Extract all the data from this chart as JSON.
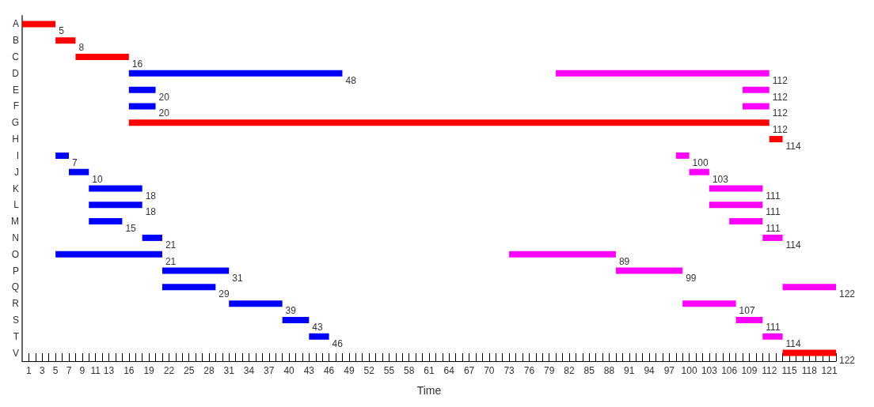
{
  "chart_data": {
    "type": "bar",
    "orientation": "horizontal",
    "xlabel": "Time",
    "categories": [
      "A",
      "B",
      "C",
      "D",
      "E",
      "F",
      "G",
      "H",
      "I",
      "J",
      "K",
      "L",
      "M",
      "N",
      "O",
      "P",
      "Q",
      "R",
      "S",
      "T",
      "V"
    ],
    "xlim": [
      0,
      122
    ],
    "xticks": [
      1,
      {
        "value": 2,
        "label": null
      },
      3,
      {
        "value": 4,
        "label": null
      },
      5,
      {
        "value": 6,
        "label": null
      },
      7,
      {
        "value": 8,
        "label": null
      },
      9,
      {
        "value": 10,
        "label": null
      },
      11,
      {
        "value": 12,
        "label": null
      },
      13,
      {
        "value": 14,
        "label": null
      },
      {
        "value": 15,
        "label": null
      },
      16,
      {
        "value": 17,
        "label": null
      },
      {
        "value": 18,
        "label": null
      },
      19,
      {
        "value": 20,
        "label": null
      },
      {
        "value": 21,
        "label": null
      },
      22,
      {
        "value": 23,
        "label": null
      },
      {
        "value": 24,
        "label": null
      },
      25,
      {
        "value": 26,
        "label": null
      },
      {
        "value": 27,
        "label": null
      },
      28,
      {
        "value": 29,
        "label": null
      },
      {
        "value": 30,
        "label": null
      },
      31,
      {
        "value": 32,
        "label": null
      },
      {
        "value": 33,
        "label": null
      },
      34,
      {
        "value": 35,
        "label": null
      },
      {
        "value": 36,
        "label": null
      },
      37,
      {
        "value": 38,
        "label": null
      },
      {
        "value": 39,
        "label": null
      },
      40,
      {
        "value": 41,
        "label": null
      },
      {
        "value": 42,
        "label": null
      },
      43,
      {
        "value": 44,
        "label": null
      },
      {
        "value": 45,
        "label": null
      },
      46,
      {
        "value": 47,
        "label": null
      },
      {
        "value": 48,
        "label": null
      },
      49,
      {
        "value": 50,
        "label": null
      },
      {
        "value": 51,
        "label": null
      },
      52,
      {
        "value": 53,
        "label": null
      },
      {
        "value": 54,
        "label": null
      },
      55,
      {
        "value": 56,
        "label": null
      },
      {
        "value": 57,
        "label": null
      },
      58,
      {
        "value": 59,
        "label": null
      },
      {
        "value": 60,
        "label": null
      },
      61,
      {
        "value": 62,
        "label": null
      },
      {
        "value": 63,
        "label": null
      },
      64,
      {
        "value": 65,
        "label": null
      },
      {
        "value": 66,
        "label": null
      },
      67,
      {
        "value": 68,
        "label": null
      },
      {
        "value": 69,
        "label": null
      },
      70,
      {
        "value": 71,
        "label": null
      },
      {
        "value": 72,
        "label": null
      },
      73,
      {
        "value": 74,
        "label": null
      },
      {
        "value": 75,
        "label": null
      },
      76,
      {
        "value": 77,
        "label": null
      },
      {
        "value": 78,
        "label": null
      },
      79,
      {
        "value": 80,
        "label": null
      },
      {
        "value": 81,
        "label": null
      },
      82,
      {
        "value": 83,
        "label": null
      },
      {
        "value": 84,
        "label": null
      },
      85,
      {
        "value": 86,
        "label": null
      },
      {
        "value": 87,
        "label": null
      },
      88,
      {
        "value": 89,
        "label": null
      },
      {
        "value": 90,
        "label": null
      },
      91,
      {
        "value": 92,
        "label": null
      },
      {
        "value": 93,
        "label": null
      },
      94,
      {
        "value": 95,
        "label": null
      },
      {
        "value": 96,
        "label": null
      },
      97,
      {
        "value": 98,
        "label": null
      },
      {
        "value": 99,
        "label": null
      },
      100,
      {
        "value": 101,
        "label": null
      },
      {
        "value": 102,
        "label": null
      },
      103,
      {
        "value": 104,
        "label": null
      },
      {
        "value": 105,
        "label": null
      },
      106,
      {
        "value": 107,
        "label": null
      },
      {
        "value": 108,
        "label": null
      },
      109,
      {
        "value": 110,
        "label": null
      },
      {
        "value": 111,
        "label": null
      },
      112,
      {
        "value": 113,
        "label": null
      },
      {
        "value": 114,
        "label": null
      },
      115,
      {
        "value": 116,
        "label": null
      },
      {
        "value": 117,
        "label": null
      },
      118,
      {
        "value": 119,
        "label": null
      },
      {
        "value": 120,
        "label": null
      },
      121,
      {
        "value": 122,
        "label": null
      }
    ],
    "grid": false,
    "series": [
      {
        "color": "#ff0000",
        "base": [
          0,
          5,
          8,
          null,
          null,
          null,
          16,
          112,
          null,
          null,
          null,
          null,
          null,
          null,
          null,
          null,
          null,
          null,
          null,
          null,
          114
        ],
        "values": [
          5,
          3,
          8,
          null,
          null,
          null,
          96,
          2,
          null,
          null,
          null,
          null,
          null,
          null,
          null,
          null,
          null,
          null,
          null,
          null,
          8
        ],
        "value_labels": [
          "5",
          "8",
          "16",
          null,
          null,
          null,
          "112",
          "114",
          null,
          null,
          null,
          null,
          null,
          null,
          null,
          null,
          null,
          null,
          null,
          null,
          "122"
        ]
      },
      {
        "color": "#0000ff",
        "base": [
          null,
          null,
          null,
          16,
          16,
          16,
          null,
          null,
          5,
          7,
          10,
          10,
          10,
          18,
          5,
          21,
          21,
          31,
          39,
          43,
          null
        ],
        "values": [
          null,
          null,
          null,
          32,
          4,
          4,
          null,
          null,
          2,
          3,
          8,
          8,
          5,
          3,
          16,
          10,
          8,
          8,
          4,
          3,
          null
        ],
        "value_labels": [
          null,
          null,
          null,
          "48",
          "20",
          "20",
          null,
          null,
          "7",
          "10",
          "18",
          "18",
          "15",
          "21",
          "21",
          "31",
          "29",
          "39",
          "43",
          "46",
          null
        ]
      },
      {
        "color": "#ff00ff",
        "base": [
          null,
          null,
          null,
          80,
          108,
          108,
          null,
          null,
          98,
          100,
          103,
          103,
          106,
          111,
          73,
          89,
          114,
          99,
          107,
          111,
          null
        ],
        "values": [
          null,
          null,
          null,
          32,
          4,
          4,
          null,
          null,
          2,
          3,
          8,
          8,
          5,
          3,
          16,
          10,
          8,
          8,
          4,
          3,
          null
        ],
        "value_labels": [
          null,
          null,
          null,
          "112",
          "112",
          "112",
          null,
          null,
          "100",
          "103",
          "111",
          "111",
          "111",
          "114",
          "89",
          "99",
          "122",
          "107",
          "111",
          "114",
          null
        ]
      }
    ]
  }
}
